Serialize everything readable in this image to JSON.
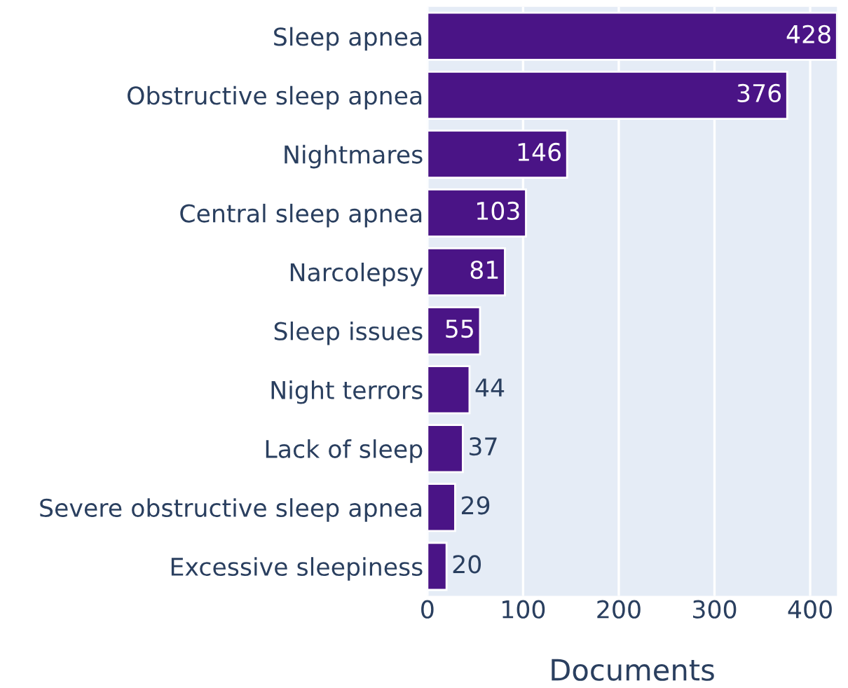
{
  "chart_data": {
    "type": "bar",
    "orientation": "horizontal",
    "xlabel": "Documents",
    "categories": [
      "Sleep apnea",
      "Obstructive sleep apnea",
      "Nightmares",
      "Central sleep apnea",
      "Narcolepsy",
      "Sleep issues",
      "Night terrors",
      "Lack of sleep",
      "Severe obstructive sleep apnea",
      "Excessive sleepiness"
    ],
    "values": [
      428,
      376,
      146,
      103,
      81,
      55,
      44,
      37,
      29,
      20
    ],
    "color": "#4a1486",
    "xlim": [
      0,
      428
    ],
    "xticks": [
      0,
      100,
      200,
      300,
      400
    ],
    "grid": "x",
    "data_labels": true
  }
}
